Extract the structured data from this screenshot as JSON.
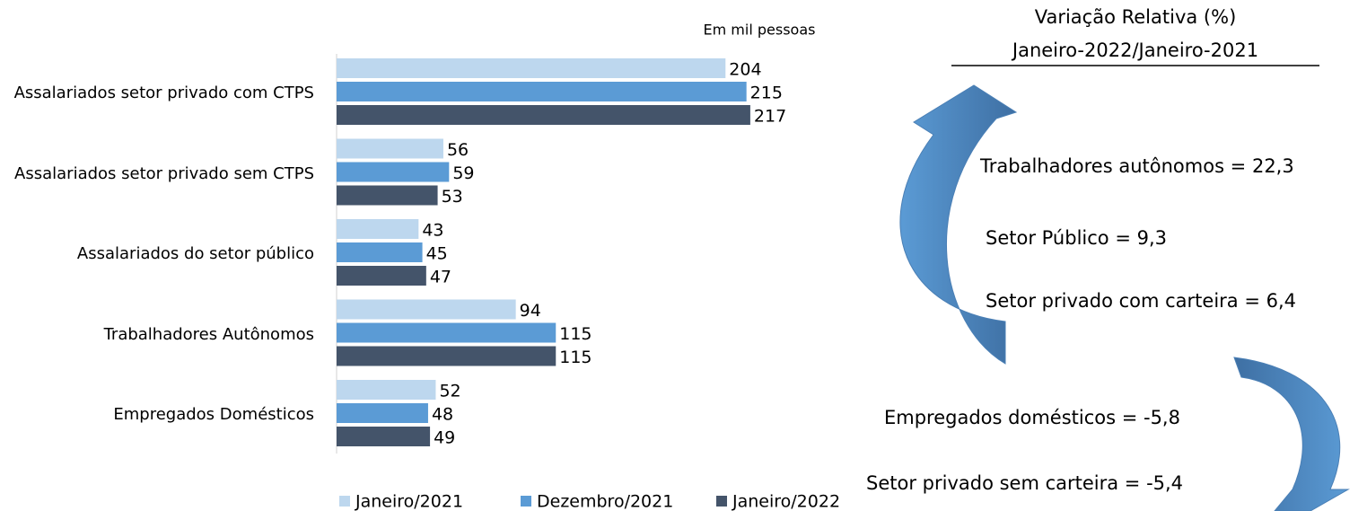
{
  "chart_data": {
    "type": "hbar",
    "note": "Em mil pessoas",
    "categories": [
      "Assalariados setor privado com CTPS",
      "Assalariados setor privado sem CTPS",
      "Assalariados do setor público",
      "Trabalhadores Autônomos",
      "Empregados Domésticos"
    ],
    "series": [
      {
        "name": "Janeiro/2021",
        "color": "#bdd7ee",
        "values": [
          204,
          56,
          43,
          94,
          52
        ]
      },
      {
        "name": "Dezembro/2021",
        "color": "#5b9bd5",
        "values": [
          215,
          59,
          45,
          115,
          48
        ]
      },
      {
        "name": "Janeiro/2022",
        "color": "#44546a",
        "values": [
          217,
          53,
          47,
          115,
          49
        ]
      }
    ],
    "xlim": [
      0,
      250
    ],
    "legend": "bottom",
    "side_title": "Variação Relativa (%)",
    "side_subtitle": "Janeiro-2022/Janeiro-2021",
    "annotations": [
      "Trabalhadores autônomos = 22,3",
      "Setor Público = 9,3",
      "Setor privado com carteira = 6,4",
      "Empregados domésticos = -5,8",
      "Setor privado sem carteira = -5,4"
    ]
  }
}
